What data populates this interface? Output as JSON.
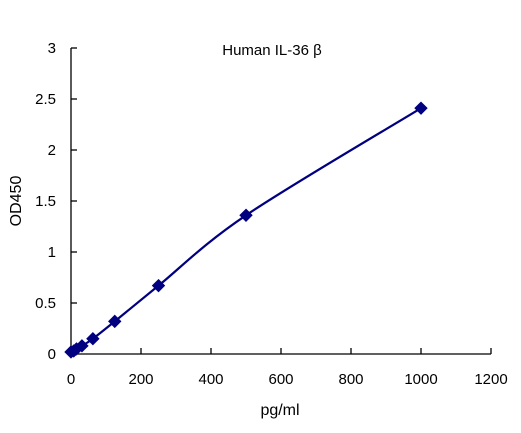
{
  "chart_data": {
    "type": "line",
    "title": "Human IL-36 β",
    "xlabel": "pg/ml",
    "ylabel": "OD450",
    "xlim": [
      0,
      1200
    ],
    "ylim": [
      0,
      3
    ],
    "xticks": [
      0,
      200,
      400,
      600,
      800,
      1000,
      1200
    ],
    "yticks": [
      0,
      0.5,
      1,
      1.5,
      2,
      2.5,
      3
    ],
    "xtick_labels": [
      "0",
      "200",
      "400",
      "600",
      "800",
      "1000",
      "1200"
    ],
    "ytick_labels": [
      "0",
      "0.5",
      "1",
      "1.5",
      "2",
      "2.5",
      "3"
    ],
    "grid": false,
    "legend": "none",
    "series": [
      {
        "marker": "diamond",
        "smooth": true,
        "color": "#000080",
        "x": [
          0,
          7.8,
          15.6,
          31.25,
          62.5,
          125,
          250,
          500,
          1000
        ],
        "y": [
          0.02,
          0.03,
          0.05,
          0.08,
          0.15,
          0.32,
          0.67,
          1.36,
          2.41
        ]
      }
    ]
  }
}
